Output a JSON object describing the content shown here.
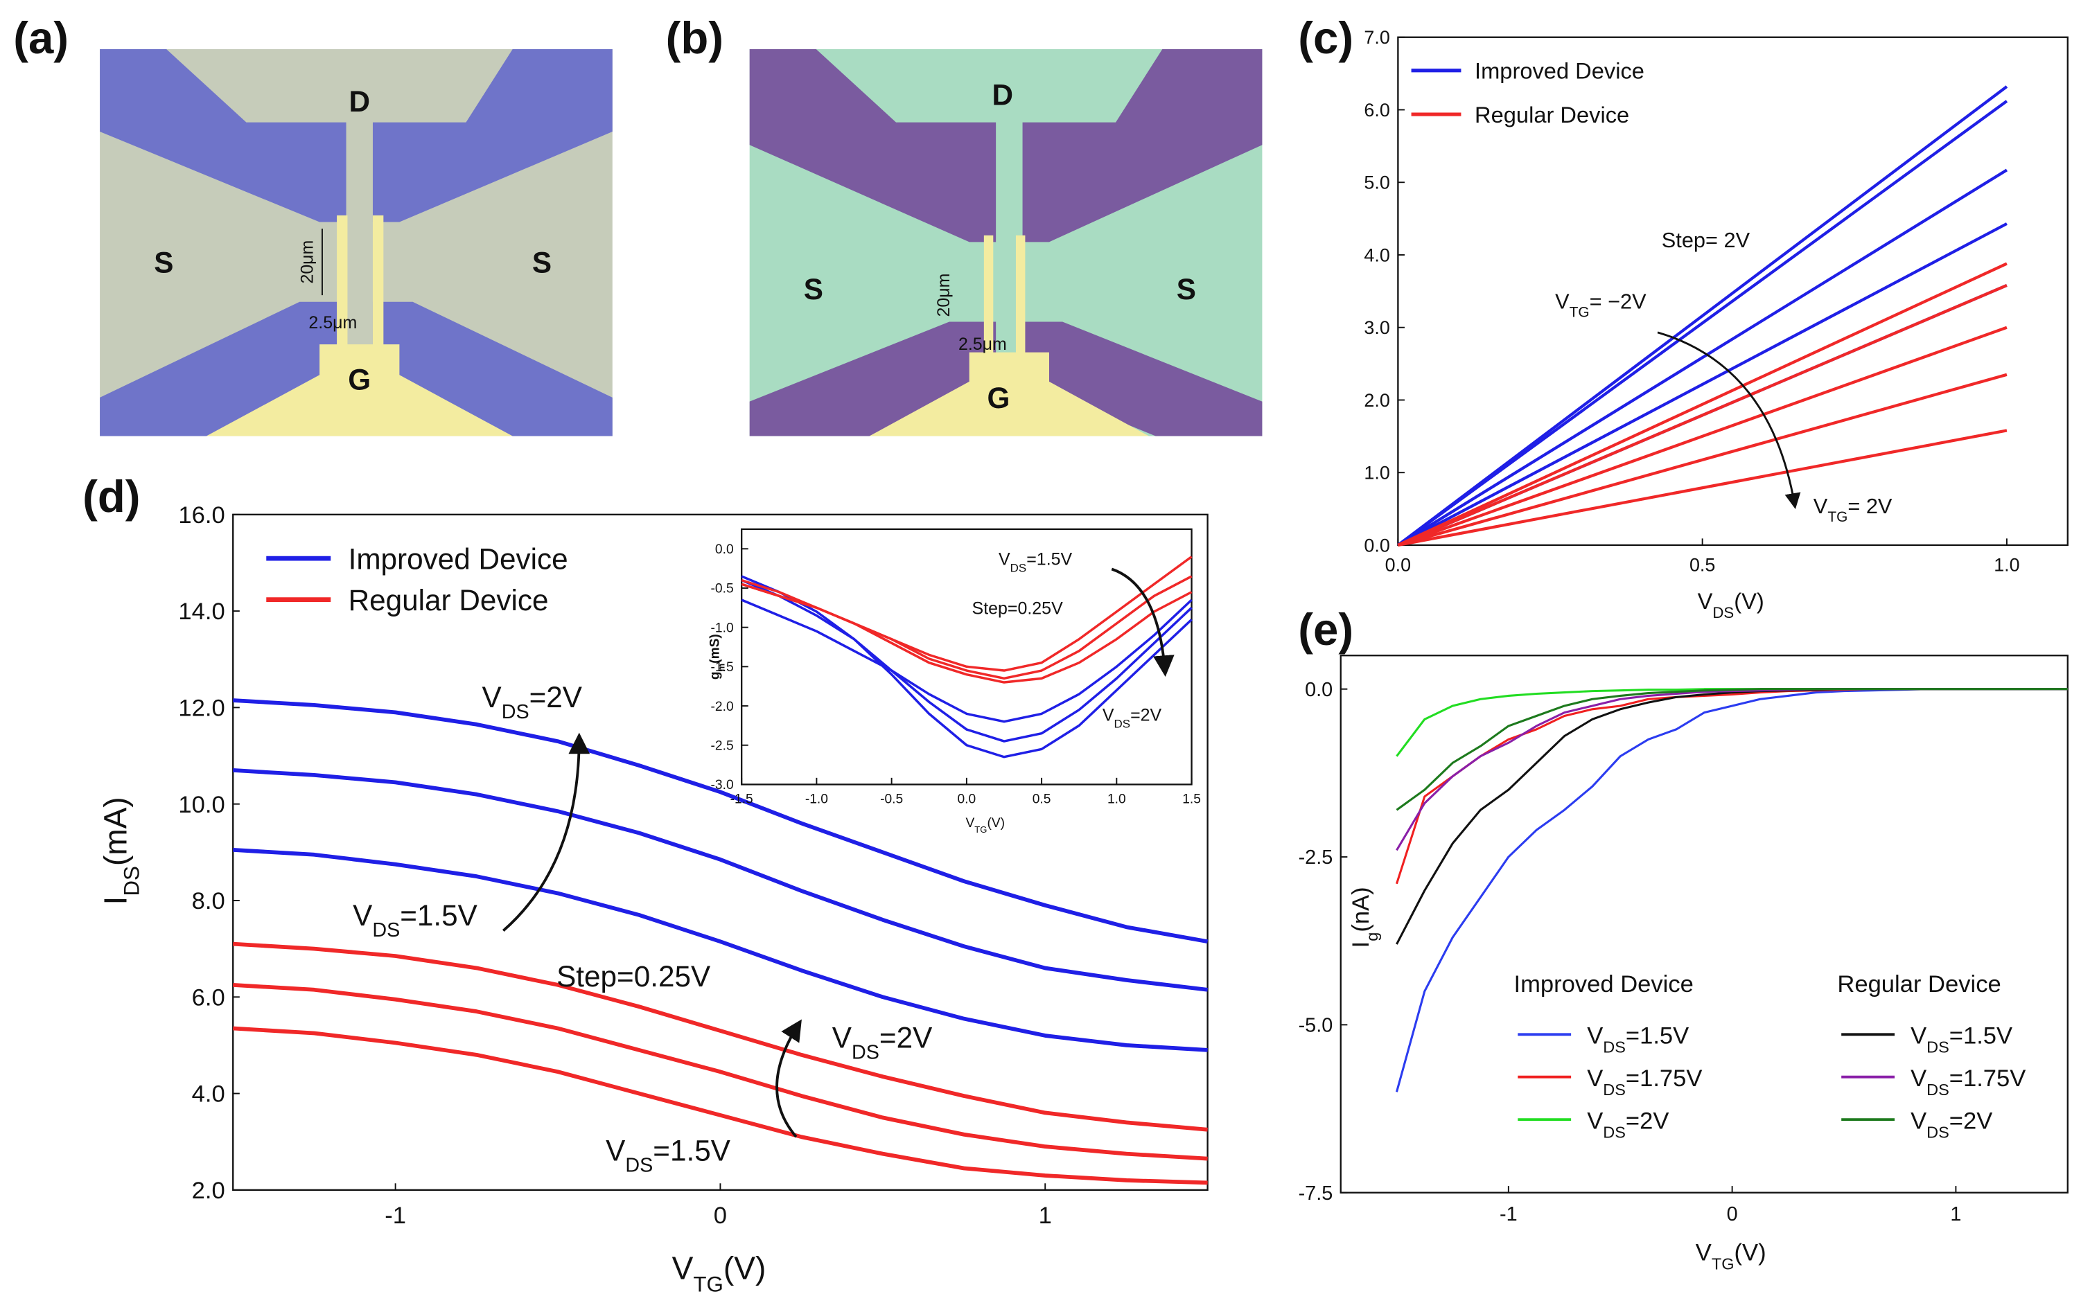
{
  "panel_labels": [
    "(a)",
    "(b)",
    "(c)",
    "(d)",
    "(e)"
  ],
  "micrographs": [
    {
      "drain": "D",
      "source_left": "S",
      "source_right": "S",
      "gate": "G",
      "length": "20μm",
      "width": "2.5μm"
    },
    {
      "drain": "D",
      "source_left": "S",
      "source_right": "S",
      "gate": "G",
      "length": "20μm",
      "width": "2.5μm"
    }
  ],
  "chart_data": [
    {
      "type": "line",
      "x": [
        0,
        1
      ],
      "xlim": [
        0,
        1.1
      ],
      "ylim": [
        0,
        7
      ],
      "xticks": [
        {
          "value": 0,
          "label": "0.0"
        },
        0.5,
        {
          "value": 1,
          "label": "1.0"
        }
      ],
      "yticks": [
        {
          "value": 0,
          "label": "0.0"
        },
        {
          "value": 1,
          "label": "1.0"
        },
        {
          "value": 2,
          "label": "2.0"
        },
        {
          "value": 3,
          "label": "3.0"
        },
        {
          "value": 4,
          "label": "4.0"
        },
        {
          "value": 5,
          "label": "5.0"
        },
        {
          "value": 6,
          "label": "6.0"
        },
        {
          "value": 7,
          "label": "7.0"
        }
      ],
      "xlabel": [
        "V",
        "DS",
        "(V)"
      ],
      "legend": "upper left",
      "series": [
        {
          "name": "Improved Device",
          "color": "#1f1fe6",
          "curves": [
            [
              0,
              6.32
            ],
            [
              0,
              6.12
            ],
            [
              0,
              5.17
            ],
            [
              0,
              4.43
            ],
            [
              0,
              3.58
            ]
          ]
        },
        {
          "name": "Regular Device",
          "color": "#f02828",
          "curves": [
            [
              0,
              3.88
            ],
            [
              0,
              3.58
            ],
            [
              0,
              3.0
            ],
            [
              0,
              2.35
            ],
            [
              0,
              1.58
            ]
          ]
        }
      ],
      "annotations": [
        [
          "Step= 2V"
        ],
        [
          "V",
          "TG",
          "= −2V"
        ],
        [
          "V",
          "TG",
          "= 2V"
        ]
      ]
    },
    {
      "type": "line",
      "x": [
        -1.5,
        -1.25,
        -1,
        -0.75,
        -0.5,
        -0.25,
        0,
        0.25,
        0.5,
        0.75,
        1,
        1.25,
        1.5
      ],
      "xlim": [
        -1.5,
        1.5
      ],
      "ylim": [
        2,
        16
      ],
      "xticks": [
        -1,
        0,
        1
      ],
      "yticks": [
        {
          "value": 2,
          "label": "2.0"
        },
        {
          "value": 4,
          "label": "4.0"
        },
        {
          "value": 6,
          "label": "6.0"
        },
        {
          "value": 8,
          "label": "8.0"
        },
        {
          "value": 10,
          "label": "10.0"
        },
        {
          "value": 12,
          "label": "12.0"
        },
        {
          "value": 14,
          "label": "14.0"
        },
        {
          "value": 16,
          "label": "16.0"
        }
      ],
      "xlabel": [
        "V",
        "TG",
        "(V)"
      ],
      "ylabel": [
        "I",
        "DS",
        "(mA)"
      ],
      "legend": "upper left",
      "series": [
        {
          "name": "Improved Device",
          "color": "#1f1fe6",
          "curves": [
            [
              12.15,
              12.05,
              11.9,
              11.65,
              11.3,
              10.8,
              10.25,
              9.6,
              9.0,
              8.4,
              7.9,
              7.45,
              7.15
            ],
            [
              10.7,
              10.6,
              10.45,
              10.2,
              9.85,
              9.4,
              8.85,
              8.2,
              7.6,
              7.05,
              6.6,
              6.35,
              6.15
            ],
            [
              9.05,
              8.95,
              8.75,
              8.5,
              8.15,
              7.7,
              7.15,
              6.55,
              6.0,
              5.55,
              5.2,
              5.0,
              4.9
            ]
          ]
        },
        {
          "name": "Regular Device",
          "color": "#f02828",
          "curves": [
            [
              7.1,
              7.0,
              6.85,
              6.6,
              6.25,
              5.8,
              5.3,
              4.8,
              4.35,
              3.95,
              3.6,
              3.4,
              3.25
            ],
            [
              6.25,
              6.15,
              5.95,
              5.7,
              5.35,
              4.9,
              4.45,
              3.95,
              3.5,
              3.15,
              2.9,
              2.75,
              2.65
            ],
            [
              5.35,
              5.25,
              5.05,
              4.8,
              4.45,
              4.0,
              3.55,
              3.1,
              2.75,
              2.45,
              2.3,
              2.2,
              2.15
            ]
          ]
        }
      ],
      "annotations": [
        [
          "V",
          "DS",
          "=2V"
        ],
        [
          "V",
          "DS",
          "=1.5V"
        ],
        [
          "Step=0.25V"
        ],
        [
          "V",
          "DS",
          "=2V"
        ],
        [
          "V",
          "DS",
          "=1.5V"
        ]
      ]
    },
    {
      "type": "line",
      "x": [
        -1.5,
        -1.25,
        -1,
        -0.75,
        -0.5,
        -0.25,
        0,
        0.25,
        0.5,
        0.75,
        1,
        1.25,
        1.5
      ],
      "xlim": [
        -1.5,
        1.5
      ],
      "ylim": [
        -3,
        0.25
      ],
      "xticks": [
        -1.5,
        {
          "value": -1,
          "label": "-1.0"
        },
        -0.5,
        {
          "value": 0,
          "label": "0.0"
        },
        0.5,
        {
          "value": 1,
          "label": "1.0"
        },
        1.5
      ],
      "yticks": [
        {
          "value": 0,
          "label": "0.0"
        },
        -0.5,
        {
          "value": -1,
          "label": "-1.0"
        },
        -1.5,
        {
          "value": -2,
          "label": "-2.0"
        },
        -2.5,
        {
          "value": -3,
          "label": "-3.0"
        }
      ],
      "xlabel": [
        "V",
        "TG",
        "(V)"
      ],
      "ylabel": [
        "g",
        "m",
        "(mS)"
      ],
      "series": [
        {
          "name": "Improved Device",
          "color": "#1f1fe6",
          "curves": [
            [
              -0.35,
              -0.55,
              -0.8,
              -1.15,
              -1.6,
              -2.1,
              -2.5,
              -2.65,
              -2.55,
              -2.25,
              -1.8,
              -1.35,
              -0.9
            ],
            [
              -0.4,
              -0.6,
              -0.85,
              -1.15,
              -1.55,
              -1.95,
              -2.3,
              -2.45,
              -2.35,
              -2.05,
              -1.65,
              -1.2,
              -0.75
            ],
            [
              -0.65,
              -0.85,
              -1.05,
              -1.3,
              -1.55,
              -1.85,
              -2.1,
              -2.2,
              -2.1,
              -1.85,
              -1.5,
              -1.1,
              -0.65
            ]
          ]
        },
        {
          "name": "Regular Device",
          "color": "#f02828",
          "curves": [
            [
              -0.4,
              -0.55,
              -0.75,
              -0.95,
              -1.2,
              -1.45,
              -1.6,
              -1.7,
              -1.65,
              -1.45,
              -1.15,
              -0.8,
              -0.55
            ],
            [
              -0.45,
              -0.6,
              -0.75,
              -0.95,
              -1.15,
              -1.4,
              -1.55,
              -1.65,
              -1.55,
              -1.3,
              -0.95,
              -0.6,
              -0.35
            ],
            [
              -0.45,
              -0.6,
              -0.75,
              -0.95,
              -1.15,
              -1.35,
              -1.5,
              -1.55,
              -1.45,
              -1.15,
              -0.8,
              -0.45,
              -0.1
            ]
          ]
        }
      ],
      "annotations": [
        [
          "V",
          "DS",
          "=1.5V"
        ],
        [
          "Step=0.25V"
        ],
        [
          "V",
          "DS",
          "=2V"
        ]
      ]
    },
    {
      "type": "line",
      "x": [
        -1.5,
        -1.375,
        -1.25,
        -1.125,
        -1,
        -0.875,
        -0.75,
        -0.625,
        -0.5,
        -0.375,
        -0.25,
        -0.125,
        0,
        0.125,
        0.25,
        0.375,
        0.5,
        0.625,
        0.75,
        0.875,
        1,
        1.125,
        1.25,
        1.375,
        1.5
      ],
      "xlim": [
        -1.75,
        1.5
      ],
      "ylim": [
        -7.5,
        0.5
      ],
      "xticks": [
        -1,
        0,
        1
      ],
      "yticks": [
        {
          "value": 0,
          "label": "0.0"
        },
        -2.5,
        {
          "value": -5,
          "label": "-5.0"
        },
        -7.5
      ],
      "xlabel": [
        "V",
        "TG",
        "(V)"
      ],
      "ylabel": [
        "I",
        "g",
        "(nA)"
      ],
      "legend": "lower center",
      "legend_groups": [
        "Improved  Device",
        "Regular  Device"
      ],
      "series": [
        {
          "name": [
            "V",
            "DS",
            "=1.5V"
          ],
          "group": 0,
          "color": "#2b3cf0",
          "values": [
            -6.0,
            -4.5,
            -3.7,
            -3.1,
            -2.5,
            -2.1,
            -1.8,
            -1.45,
            -1.0,
            -0.75,
            -0.6,
            -0.35,
            -0.25,
            -0.15,
            -0.1,
            -0.05,
            -0.03,
            -0.02,
            -0.01,
            0,
            0,
            0,
            0,
            0,
            0
          ]
        },
        {
          "name": [
            "V",
            "DS",
            "=1.75V"
          ],
          "group": 0,
          "color": "#f02020",
          "values": [
            -2.9,
            -1.6,
            -1.3,
            -1.0,
            -0.75,
            -0.6,
            -0.4,
            -0.3,
            -0.25,
            -0.15,
            -0.12,
            -0.1,
            -0.08,
            -0.05,
            -0.03,
            -0.02,
            -0.01,
            0,
            0,
            0,
            0,
            0,
            0,
            0,
            0
          ]
        },
        {
          "name": [
            "V",
            "DS",
            "=2V"
          ],
          "group": 0,
          "color": "#22dd22",
          "values": [
            -1.0,
            -0.45,
            -0.25,
            -0.15,
            -0.1,
            -0.07,
            -0.05,
            -0.03,
            -0.02,
            -0.01,
            -0.01,
            0,
            0,
            0,
            0,
            0,
            0,
            0,
            0,
            0,
            0,
            0,
            0,
            0,
            0
          ]
        },
        {
          "name": [
            "V",
            "DS",
            "=1.5V"
          ],
          "group": 1,
          "color": "#111111",
          "values": [
            -3.8,
            -3.0,
            -2.3,
            -1.8,
            -1.5,
            -1.1,
            -0.7,
            -0.45,
            -0.3,
            -0.2,
            -0.12,
            -0.08,
            -0.05,
            -0.03,
            -0.02,
            -0.01,
            0,
            0,
            0,
            0,
            0,
            0,
            0,
            0,
            0
          ]
        },
        {
          "name": [
            "V",
            "DS",
            "=1.75V"
          ],
          "group": 1,
          "color": "#8a1fa8",
          "values": [
            -2.4,
            -1.7,
            -1.3,
            -1.0,
            -0.8,
            -0.55,
            -0.35,
            -0.25,
            -0.15,
            -0.1,
            -0.07,
            -0.04,
            -0.03,
            -0.02,
            -0.01,
            0,
            0,
            0,
            0,
            0,
            0,
            0,
            0,
            0,
            0
          ]
        },
        {
          "name": [
            "V",
            "DS",
            "=2V"
          ],
          "group": 1,
          "color": "#1d7a1d",
          "values": [
            -1.8,
            -1.5,
            -1.1,
            -0.85,
            -0.55,
            -0.4,
            -0.25,
            -0.15,
            -0.1,
            -0.06,
            -0.04,
            -0.02,
            -0.01,
            0,
            0,
            0,
            0,
            0,
            0,
            0,
            0,
            0,
            0,
            0,
            0
          ]
        }
      ]
    }
  ]
}
